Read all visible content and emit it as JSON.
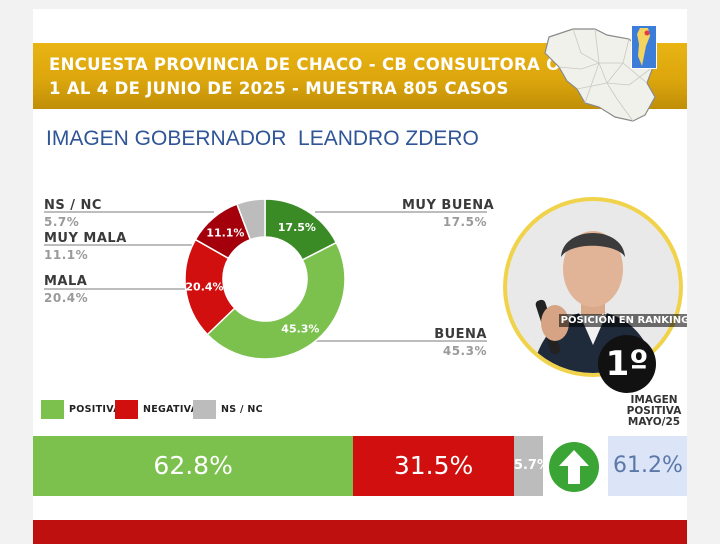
{
  "header": {
    "line1": "ENCUESTA PROVINCIA DE CHACO - CB CONSULTORA OP",
    "line2": "1 AL 4 DE JUNIO DE 2025 - MUESTRA 805 CASOS"
  },
  "section_title": "IMAGEN GOBERNADOR  LEANDRO ZDERO",
  "colors": {
    "muy_buena": "#3a8a25",
    "buena": "#7cc04e",
    "mala": "#d10f0f",
    "muy_mala": "#a3000c",
    "nsnc": "#bcbcbc",
    "positiva": "#7cc04e",
    "negativa": "#d10f0f"
  },
  "chart_data": [
    {
      "type": "pie",
      "title": "",
      "slices": [
        {
          "label": "MUY BUENA",
          "value": 17.5,
          "display": "17.5%"
        },
        {
          "label": "BUENA",
          "value": 45.3,
          "display": "45.3%"
        },
        {
          "label": "MALA",
          "value": 20.4,
          "display": "20.4%"
        },
        {
          "label": "MUY MALA",
          "value": 11.1,
          "display": "11.1%"
        },
        {
          "label": "NS / NC",
          "value": 5.7,
          "display": "5.7%"
        }
      ]
    },
    {
      "type": "bar",
      "orientation": "horizontal-stacked",
      "legend": [
        "POSITIVA",
        "NEGATIVA",
        "NS / NC"
      ],
      "series": [
        {
          "name": "POSITIVA",
          "value": 62.8,
          "display": "62.8%"
        },
        {
          "name": "NEGATIVA",
          "value": 31.5,
          "display": "31.5%"
        },
        {
          "name": "NS / NC",
          "value": 5.7,
          "display": "5.7%"
        }
      ]
    }
  ],
  "labels": {
    "nsnc": {
      "name": "NS / NC",
      "value": "5.7%"
    },
    "muy_mala": {
      "name": "MUY MALA",
      "value": "11.1%"
    },
    "mala": {
      "name": "MALA",
      "value": "20.4%"
    },
    "muy_buena": {
      "name": "MUY BUENA",
      "value": "17.5%"
    },
    "buena": {
      "name": "BUENA",
      "value": "45.3%"
    }
  },
  "ranking": {
    "label": "POSICIÓN EN RANKING",
    "value": "1º"
  },
  "legend": {
    "positiva": "POSITIVA",
    "negativa": "NEGATIVA",
    "nsnc": "NS / NC"
  },
  "trend_icon": "up-arrow-icon",
  "previous": {
    "title_lines": [
      "IMAGEN",
      "POSITIVA",
      "MAYO/25"
    ],
    "value": "61.2%"
  }
}
